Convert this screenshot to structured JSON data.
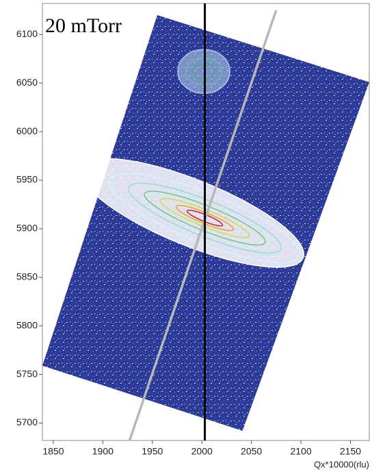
{
  "chart_data": {
    "type": "rsm",
    "annotation": "20 mTorr",
    "x_label": "Qx*10000(rlu)",
    "xlim": [
      1839,
      2169
    ],
    "ylim": [
      5682,
      6132
    ],
    "xticks": [
      1850,
      1900,
      1950,
      2000,
      2050,
      2100,
      2150
    ],
    "yticks": [
      5700,
      5750,
      5800,
      5850,
      5900,
      5950,
      6000,
      6050,
      6100
    ],
    "scan_area": {
      "x": [
        1955,
        2169,
        2041,
        1839
      ],
      "y": [
        6120,
        6051,
        5692,
        5759
      ]
    },
    "peaks": {
      "x": [
        2003,
        2002
      ],
      "y": [
        5911,
        6062
      ]
    },
    "vertical_line": {
      "x": 2003,
      "color": "#000000"
    },
    "relaxation_line": {
      "x": [
        1927,
        2075
      ],
      "y": [
        5682,
        6125
      ],
      "color": "#b8b8b8"
    }
  }
}
